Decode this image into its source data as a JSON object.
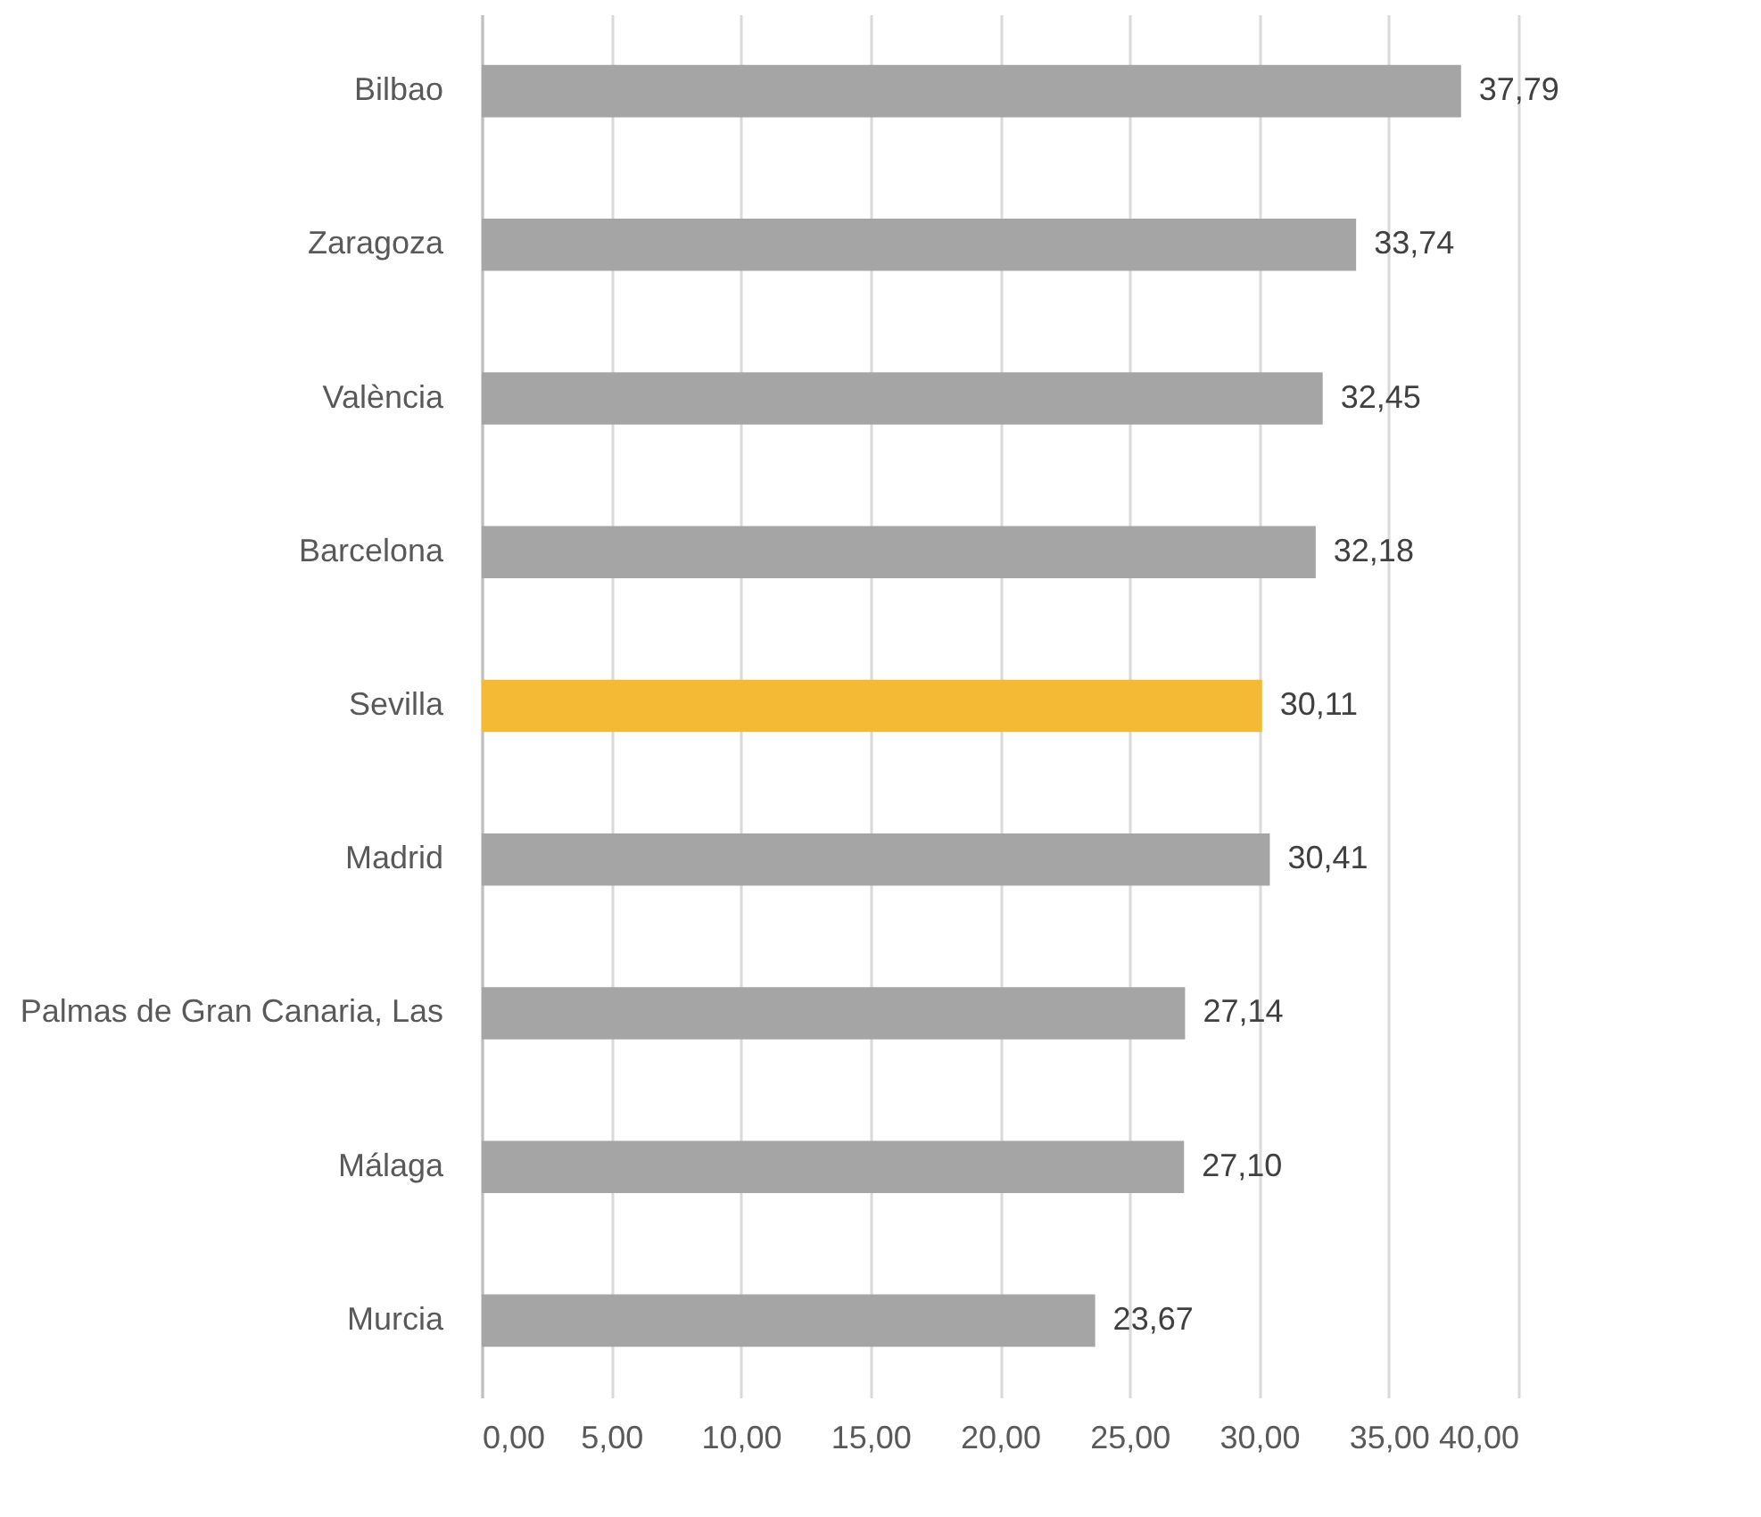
{
  "chart_data": {
    "type": "bar",
    "orientation": "horizontal",
    "categories": [
      "Bilbao",
      "Zaragoza",
      "València",
      "Barcelona",
      "Sevilla",
      "Madrid",
      "Palmas de Gran Canaria, Las",
      "Málaga",
      "Murcia"
    ],
    "values": [
      37.79,
      33.74,
      32.45,
      32.18,
      30.11,
      30.41,
      27.14,
      27.1,
      23.67
    ],
    "colors": [
      "#a5a5a5",
      "#a5a5a5",
      "#a5a5a5",
      "#a5a5a5",
      "#f4b935",
      "#a5a5a5",
      "#a5a5a5",
      "#a5a5a5",
      "#a5a5a5"
    ],
    "value_labels": [
      "37,79",
      "33,74",
      "32,45",
      "32,18",
      "30,11",
      "30,41",
      "27,14",
      "27,10",
      "23,67"
    ],
    "xlim": [
      0,
      40
    ],
    "xticks": [
      {
        "value": 0,
        "label": "0,00"
      },
      {
        "value": 5,
        "label": "5,00"
      },
      {
        "value": 10,
        "label": "10,00"
      },
      {
        "value": 15,
        "label": "15,00"
      },
      {
        "value": 20,
        "label": "20,00"
      },
      {
        "value": 25,
        "label": "25,00"
      },
      {
        "value": 30,
        "label": "30,00"
      },
      {
        "value": 35,
        "label": "35,00"
      },
      {
        "value": 40,
        "label": "40,00"
      }
    ],
    "grid": "x"
  }
}
